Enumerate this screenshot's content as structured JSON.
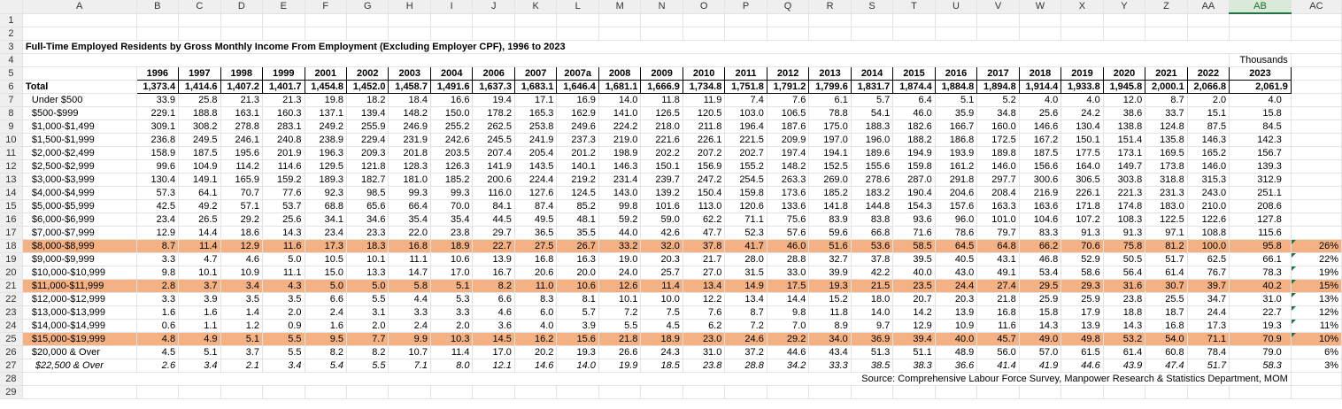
{
  "columns": [
    "A",
    "B",
    "C",
    "D",
    "E",
    "F",
    "G",
    "H",
    "I",
    "J",
    "K",
    "L",
    "M",
    "N",
    "O",
    "P",
    "Q",
    "R",
    "S",
    "T",
    "U",
    "V",
    "W",
    "X",
    "Y",
    "Z",
    "AA",
    "AB",
    "AC"
  ],
  "selected_column": "AB",
  "title": "Full-Time Employed Residents by Gross Monthly Income From Employment (Excluding Employer CPF), 1996 to 2023",
  "units": "Thousands",
  "years": [
    "1996",
    "1997",
    "1998",
    "1999",
    "2001",
    "2002",
    "2003",
    "2004",
    "2006",
    "2007",
    "2007a",
    "2008",
    "2009",
    "2010",
    "2011",
    "2012",
    "2013",
    "2014",
    "2015",
    "2016",
    "2017",
    "2018",
    "2019",
    "2020",
    "2021",
    "2022",
    "2023"
  ],
  "total": {
    "label": "Total",
    "values": [
      "1,373.4",
      "1,414.6",
      "1,407.2",
      "1,401.7",
      "1,454.8",
      "1,452.0",
      "1,458.7",
      "1,491.6",
      "1,637.3",
      "1,683.1",
      "1,646.4",
      "1,681.1",
      "1,666.9",
      "1,734.8",
      "1,751.8",
      "1,791.2",
      "1,799.6",
      "1,831.7",
      "1,874.4",
      "1,884.8",
      "1,894.8",
      "1,914.4",
      "1,933.8",
      "1,945.8",
      "2,000.1",
      "2,066.8",
      "2,061.9"
    ]
  },
  "rows": [
    {
      "label": "Under $500",
      "values": [
        "33.9",
        "25.8",
        "21.3",
        "21.3",
        "19.8",
        "18.2",
        "18.4",
        "16.6",
        "19.4",
        "17.1",
        "16.9",
        "14.0",
        "11.8",
        "11.9",
        "7.4",
        "7.6",
        "6.1",
        "5.7",
        "6.4",
        "5.1",
        "5.2",
        "4.0",
        "4.0",
        "12.0",
        "8.7",
        "2.0",
        "4.0"
      ],
      "pct": "",
      "hl": false,
      "italic": false
    },
    {
      "label": "$500-$999",
      "values": [
        "229.1",
        "188.8",
        "163.1",
        "160.3",
        "137.1",
        "139.4",
        "148.2",
        "150.0",
        "178.2",
        "165.3",
        "162.9",
        "141.0",
        "126.5",
        "120.5",
        "103.0",
        "106.5",
        "78.8",
        "54.1",
        "46.0",
        "35.9",
        "34.8",
        "25.6",
        "24.2",
        "38.6",
        "33.7",
        "15.1",
        "15.8"
      ],
      "pct": "",
      "hl": false,
      "italic": false
    },
    {
      "label": "$1,000-$1,499",
      "values": [
        "309.1",
        "308.2",
        "278.8",
        "283.1",
        "249.2",
        "255.9",
        "246.9",
        "255.2",
        "262.5",
        "253.8",
        "249.6",
        "224.2",
        "218.0",
        "211.8",
        "196.4",
        "187.6",
        "175.0",
        "188.3",
        "182.6",
        "166.7",
        "160.0",
        "146.6",
        "130.4",
        "138.8",
        "124.8",
        "87.5",
        "84.5"
      ],
      "pct": "",
      "hl": false,
      "italic": false
    },
    {
      "label": "$1,500-$1,999",
      "values": [
        "236.8",
        "249.5",
        "246.1",
        "240.8",
        "238.9",
        "229.4",
        "231.9",
        "242.6",
        "245.5",
        "241.9",
        "237.3",
        "219.0",
        "221.6",
        "226.1",
        "221.5",
        "209.9",
        "197.0",
        "196.0",
        "188.2",
        "186.8",
        "172.5",
        "167.2",
        "150.1",
        "151.4",
        "135.8",
        "146.3",
        "142.3"
      ],
      "pct": "",
      "hl": false,
      "italic": false
    },
    {
      "label": "$2,000-$2,499",
      "values": [
        "158.9",
        "187.5",
        "195.6",
        "201.9",
        "196.3",
        "209.3",
        "201.8",
        "203.5",
        "207.4",
        "205.4",
        "201.2",
        "198.9",
        "202.2",
        "207.2",
        "202.7",
        "197.4",
        "194.1",
        "189.6",
        "194.9",
        "193.9",
        "189.8",
        "187.5",
        "177.5",
        "173.1",
        "169.5",
        "165.2",
        "156.7"
      ],
      "pct": "",
      "hl": false,
      "italic": false
    },
    {
      "label": "$2,500-$2,999",
      "values": [
        "99.6",
        "104.9",
        "114.2",
        "114.6",
        "129.5",
        "121.8",
        "128.3",
        "126.3",
        "141.9",
        "143.5",
        "140.1",
        "146.3",
        "150.1",
        "156.9",
        "155.2",
        "148.2",
        "152.5",
        "155.6",
        "159.8",
        "161.2",
        "146.0",
        "156.6",
        "164.0",
        "149.7",
        "173.8",
        "146.0",
        "139.3"
      ],
      "pct": "",
      "hl": false,
      "italic": false
    },
    {
      "label": "$3,000-$3,999",
      "values": [
        "130.4",
        "149.1",
        "165.9",
        "159.2",
        "189.3",
        "182.7",
        "181.0",
        "185.2",
        "200.6",
        "224.4",
        "219.2",
        "231.4",
        "239.7",
        "247.2",
        "254.5",
        "263.3",
        "269.0",
        "278.6",
        "287.0",
        "291.8",
        "297.7",
        "300.6",
        "306.5",
        "303.8",
        "318.8",
        "315.3",
        "312.9"
      ],
      "pct": "",
      "hl": false,
      "italic": false
    },
    {
      "label": "$4,000-$4,999",
      "values": [
        "57.3",
        "64.1",
        "70.7",
        "77.6",
        "92.3",
        "98.5",
        "99.3",
        "99.3",
        "116.0",
        "127.6",
        "124.5",
        "143.0",
        "139.2",
        "150.4",
        "159.8",
        "173.6",
        "185.2",
        "183.2",
        "190.4",
        "204.6",
        "208.4",
        "216.9",
        "226.1",
        "221.3",
        "231.3",
        "243.0",
        "251.1"
      ],
      "pct": "",
      "hl": false,
      "italic": false
    },
    {
      "label": "$5,000-$5,999",
      "values": [
        "42.5",
        "49.2",
        "57.1",
        "53.7",
        "68.8",
        "65.6",
        "66.4",
        "70.0",
        "84.1",
        "87.4",
        "85.2",
        "99.8",
        "101.6",
        "113.0",
        "120.6",
        "133.6",
        "141.8",
        "144.8",
        "154.3",
        "157.6",
        "163.3",
        "163.6",
        "171.8",
        "174.8",
        "183.0",
        "210.0",
        "208.6"
      ],
      "pct": "",
      "hl": false,
      "italic": false
    },
    {
      "label": "$6,000-$6,999",
      "values": [
        "23.4",
        "26.5",
        "29.2",
        "25.6",
        "34.1",
        "34.6",
        "35.4",
        "35.4",
        "44.5",
        "49.5",
        "48.1",
        "59.2",
        "59.0",
        "62.2",
        "71.1",
        "75.6",
        "83.9",
        "83.8",
        "93.6",
        "96.0",
        "101.0",
        "104.6",
        "107.2",
        "108.3",
        "122.5",
        "122.6",
        "127.8"
      ],
      "pct": "",
      "hl": false,
      "italic": false
    },
    {
      "label": "$7,000-$7,999",
      "values": [
        "12.9",
        "14.4",
        "18.6",
        "14.3",
        "23.4",
        "23.3",
        "22.0",
        "23.8",
        "29.7",
        "36.5",
        "35.5",
        "44.0",
        "42.6",
        "47.7",
        "52.3",
        "57.6",
        "59.6",
        "66.8",
        "71.6",
        "78.6",
        "79.7",
        "83.3",
        "91.3",
        "91.3",
        "97.1",
        "108.8",
        "115.6"
      ],
      "pct": "",
      "hl": false,
      "italic": false
    },
    {
      "label": "$8,000-$8,999",
      "values": [
        "8.7",
        "11.4",
        "12.9",
        "11.6",
        "17.3",
        "18.3",
        "16.8",
        "18.9",
        "22.7",
        "27.5",
        "26.7",
        "33.2",
        "32.0",
        "37.8",
        "41.7",
        "46.0",
        "51.6",
        "53.6",
        "58.5",
        "64.5",
        "64.8",
        "66.2",
        "70.6",
        "75.8",
        "81.2",
        "100.0",
        "95.8"
      ],
      "pct": "26%",
      "hl": true,
      "italic": false
    },
    {
      "label": "$9,000-$9,999",
      "values": [
        "3.3",
        "4.7",
        "4.6",
        "5.0",
        "10.5",
        "10.1",
        "11.1",
        "10.6",
        "13.9",
        "16.8",
        "16.3",
        "19.0",
        "20.3",
        "21.7",
        "28.0",
        "28.8",
        "32.7",
        "37.8",
        "39.5",
        "40.5",
        "43.1",
        "46.8",
        "52.9",
        "50.5",
        "51.7",
        "62.5",
        "66.1"
      ],
      "pct": "22%",
      "hl": false,
      "italic": false
    },
    {
      "label": "$10,000-$10,999",
      "values": [
        "9.8",
        "10.1",
        "10.9",
        "11.1",
        "15.0",
        "13.3",
        "14.7",
        "17.0",
        "16.7",
        "20.6",
        "20.0",
        "24.0",
        "25.7",
        "27.0",
        "31.5",
        "33.0",
        "39.9",
        "42.2",
        "40.0",
        "43.0",
        "49.1",
        "53.4",
        "58.6",
        "56.4",
        "61.4",
        "76.7",
        "78.3"
      ],
      "pct": "19%",
      "hl": false,
      "italic": false
    },
    {
      "label": "$11,000-$11,999",
      "values": [
        "2.8",
        "3.7",
        "3.4",
        "4.3",
        "5.0",
        "5.0",
        "5.8",
        "5.1",
        "8.2",
        "11.0",
        "10.6",
        "12.6",
        "11.4",
        "13.4",
        "14.9",
        "17.5",
        "19.3",
        "21.5",
        "23.5",
        "24.4",
        "27.4",
        "29.5",
        "29.3",
        "31.6",
        "30.7",
        "39.7",
        "40.2"
      ],
      "pct": "15%",
      "hl": true,
      "italic": false
    },
    {
      "label": "$12,000-$12,999",
      "values": [
        "3.3",
        "3.9",
        "3.5",
        "3.5",
        "6.6",
        "5.5",
        "4.4",
        "5.3",
        "6.6",
        "8.3",
        "8.1",
        "10.1",
        "10.0",
        "12.2",
        "13.4",
        "14.4",
        "15.2",
        "18.0",
        "20.7",
        "20.3",
        "21.8",
        "25.9",
        "25.9",
        "23.8",
        "25.5",
        "34.7",
        "31.0"
      ],
      "pct": "13%",
      "hl": false,
      "italic": false
    },
    {
      "label": "$13,000-$13,999",
      "values": [
        "1.6",
        "1.6",
        "1.4",
        "2.0",
        "2.4",
        "3.1",
        "3.3",
        "3.3",
        "4.6",
        "6.0",
        "5.7",
        "7.2",
        "7.5",
        "7.6",
        "8.7",
        "9.8",
        "11.8",
        "14.0",
        "14.2",
        "13.9",
        "16.8",
        "15.8",
        "17.9",
        "18.8",
        "18.7",
        "24.4",
        "22.7"
      ],
      "pct": "12%",
      "hl": false,
      "italic": false
    },
    {
      "label": "$14,000-$14,999",
      "values": [
        "0.6",
        "1.1",
        "1.2",
        "0.9",
        "1.6",
        "2.0",
        "2.4",
        "2.0",
        "3.6",
        "4.0",
        "3.9",
        "5.5",
        "4.5",
        "6.2",
        "7.2",
        "7.0",
        "8.9",
        "9.7",
        "12.9",
        "10.9",
        "11.6",
        "14.3",
        "13.9",
        "14.3",
        "16.8",
        "17.3",
        "19.3"
      ],
      "pct": "11%",
      "hl": false,
      "italic": false
    },
    {
      "label": "$15,000-$19,999",
      "values": [
        "4.8",
        "4.9",
        "5.1",
        "5.5",
        "9.5",
        "7.7",
        "9.9",
        "10.3",
        "14.5",
        "16.2",
        "15.6",
        "21.8",
        "18.9",
        "23.0",
        "24.6",
        "29.2",
        "34.0",
        "36.9",
        "39.4",
        "40.0",
        "45.7",
        "49.0",
        "49.8",
        "53.2",
        "54.0",
        "71.1",
        "70.9"
      ],
      "pct": "10%",
      "hl": true,
      "italic": false
    },
    {
      "label": "$20,000 & Over",
      "values": [
        "4.5",
        "5.1",
        "3.7",
        "5.5",
        "8.2",
        "8.2",
        "10.7",
        "11.4",
        "17.0",
        "20.2",
        "19.3",
        "26.6",
        "24.3",
        "31.0",
        "37.2",
        "44.6",
        "43.4",
        "51.3",
        "51.1",
        "48.9",
        "56.0",
        "57.0",
        "61.5",
        "61.4",
        "60.8",
        "78.4",
        "79.0"
      ],
      "pct": "6%",
      "hl": false,
      "italic": false
    },
    {
      "label": "$22,500 & Over",
      "values": [
        "2.6",
        "3.4",
        "2.1",
        "3.4",
        "5.4",
        "5.5",
        "7.1",
        "8.0",
        "12.1",
        "14.6",
        "14.0",
        "19.9",
        "18.5",
        "23.8",
        "28.8",
        "34.2",
        "33.3",
        "38.5",
        "38.3",
        "36.6",
        "41.4",
        "41.9",
        "44.6",
        "43.9",
        "47.4",
        "51.7",
        "58.3"
      ],
      "pct": "3%",
      "hl": false,
      "italic": true
    }
  ],
  "source": "Source: Comprehensive Labour Force Survey, Manpower Research & Statistics Department, MOM",
  "colors": {
    "highlight": "#f4b183",
    "header_bg": "#efefef",
    "selected_header": "#217346"
  }
}
